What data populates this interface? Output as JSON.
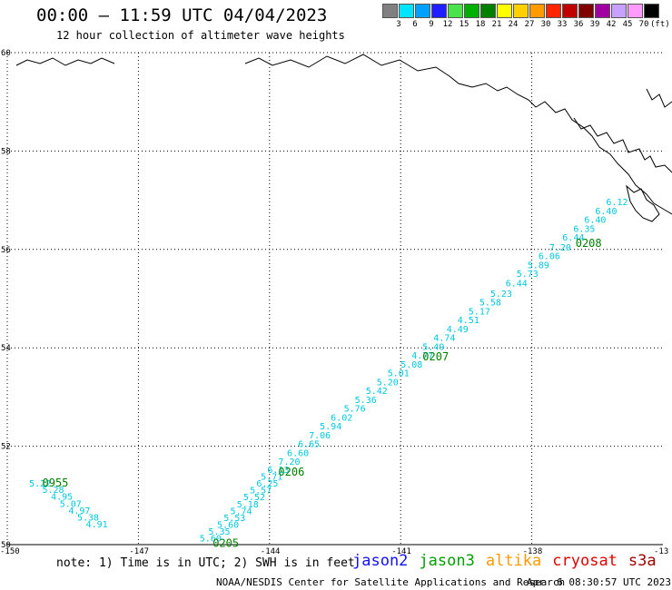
{
  "header": {
    "title": "00:00 – 11:59 UTC 04/04/2023",
    "subtitle": "12 hour collection of altimeter wave heights"
  },
  "colorbar": {
    "unit": "(ft)",
    "swatches": [
      {
        "label": "3",
        "color": "#808080"
      },
      {
        "label": "6",
        "color": "#00e5ff"
      },
      {
        "label": "9",
        "color": "#00a0ff"
      },
      {
        "label": "12",
        "color": "#1f1fff"
      },
      {
        "label": "15",
        "color": "#4be34b"
      },
      {
        "label": "18",
        "color": "#00b000"
      },
      {
        "label": "21",
        "color": "#008000"
      },
      {
        "label": "24",
        "color": "#ffff00"
      },
      {
        "label": "27",
        "color": "#ffd000"
      },
      {
        "label": "30",
        "color": "#ff9a00"
      },
      {
        "label": "33",
        "color": "#ff2400"
      },
      {
        "label": "36",
        "color": "#c00000"
      },
      {
        "label": "39",
        "color": "#800000"
      },
      {
        "label": "42",
        "color": "#a000a0"
      },
      {
        "label": "45",
        "color": "#c8a0ff"
      },
      {
        "label": "70",
        "color": "#ff9aff"
      },
      {
        "label": "",
        "color": "#000000"
      }
    ]
  },
  "axes": {
    "lon_labels": [
      "-150",
      "-147",
      "-144",
      "-141",
      "-138",
      "-13"
    ],
    "lat_labels": [
      "50",
      "52",
      "54",
      "56",
      "58",
      "60"
    ]
  },
  "track_color": "#00c8e0",
  "time_color": "#008000",
  "observations": [
    {
      "lon": -149.5,
      "lat": 51.18,
      "swh": "5.22"
    },
    {
      "lon": -149.2,
      "lat": 51.05,
      "swh": "5.28"
    },
    {
      "lon": -149.0,
      "lat": 50.91,
      "swh": "4.95"
    },
    {
      "lon": -148.8,
      "lat": 50.77,
      "swh": "5.07"
    },
    {
      "lon": -148.6,
      "lat": 50.63,
      "swh": "4.97"
    },
    {
      "lon": -148.4,
      "lat": 50.49,
      "swh": "5.38"
    },
    {
      "lon": -148.2,
      "lat": 50.35,
      "swh": "4.91"
    },
    {
      "lon": -145.6,
      "lat": 50.06,
      "swh": "5.60"
    },
    {
      "lon": -145.4,
      "lat": 50.2,
      "swh": "5.35"
    },
    {
      "lon": -145.2,
      "lat": 50.34,
      "swh": "5.60"
    },
    {
      "lon": -145.05,
      "lat": 50.48,
      "swh": "5.53"
    },
    {
      "lon": -144.9,
      "lat": 50.62,
      "swh": "5.74"
    },
    {
      "lon": -144.75,
      "lat": 50.76,
      "swh": "5.18"
    },
    {
      "lon": -144.6,
      "lat": 50.9,
      "swh": "5.52"
    },
    {
      "lon": -144.45,
      "lat": 51.04,
      "swh": "5.57"
    },
    {
      "lon": -144.3,
      "lat": 51.18,
      "swh": "6.25"
    },
    {
      "lon": -144.2,
      "lat": 51.32,
      "swh": "5.71"
    },
    {
      "lon": -144.05,
      "lat": 51.46,
      "swh": "6.13"
    },
    {
      "lon": -143.8,
      "lat": 51.62,
      "swh": "7.20"
    },
    {
      "lon": -143.6,
      "lat": 51.8,
      "swh": "6.60"
    },
    {
      "lon": -143.35,
      "lat": 51.98,
      "swh": "6.65"
    },
    {
      "lon": -143.1,
      "lat": 52.16,
      "swh": "7.06"
    },
    {
      "lon": -142.85,
      "lat": 52.34,
      "swh": "5.94"
    },
    {
      "lon": -142.6,
      "lat": 52.52,
      "swh": "6.02"
    },
    {
      "lon": -142.3,
      "lat": 52.7,
      "swh": "5.76"
    },
    {
      "lon": -142.05,
      "lat": 52.88,
      "swh": "5.36"
    },
    {
      "lon": -141.8,
      "lat": 53.06,
      "swh": "5.42"
    },
    {
      "lon": -141.55,
      "lat": 53.24,
      "swh": "5.20"
    },
    {
      "lon": -141.3,
      "lat": 53.42,
      "swh": "5.01"
    },
    {
      "lon": -141.0,
      "lat": 53.6,
      "swh": "5.08"
    },
    {
      "lon": -140.75,
      "lat": 53.78,
      "swh": "4.77"
    },
    {
      "lon": -140.5,
      "lat": 53.96,
      "swh": "5.49"
    },
    {
      "lon": -140.25,
      "lat": 54.14,
      "swh": "4.74"
    },
    {
      "lon": -139.95,
      "lat": 54.32,
      "swh": "4.49"
    },
    {
      "lon": -139.7,
      "lat": 54.5,
      "swh": "4.51"
    },
    {
      "lon": -139.45,
      "lat": 54.68,
      "swh": "5.17"
    },
    {
      "lon": -139.2,
      "lat": 54.86,
      "swh": "5.58"
    },
    {
      "lon": -138.95,
      "lat": 55.04,
      "swh": "5.23"
    },
    {
      "lon": -138.6,
      "lat": 55.25,
      "swh": "6.44"
    },
    {
      "lon": -138.35,
      "lat": 55.44,
      "swh": "5.73"
    },
    {
      "lon": -138.1,
      "lat": 55.62,
      "swh": "5.89"
    },
    {
      "lon": -137.85,
      "lat": 55.8,
      "swh": "6.06"
    },
    {
      "lon": -137.6,
      "lat": 55.98,
      "swh": "7.20"
    },
    {
      "lon": -137.3,
      "lat": 56.18,
      "swh": "6.44"
    },
    {
      "lon": -137.05,
      "lat": 56.36,
      "swh": "6.35"
    },
    {
      "lon": -136.8,
      "lat": 56.54,
      "swh": "6.40"
    },
    {
      "lon": -136.55,
      "lat": 56.72,
      "swh": "6.40"
    },
    {
      "lon": -136.3,
      "lat": 56.9,
      "swh": "6.12"
    }
  ],
  "time_labels": [
    {
      "lon": -149.2,
      "lat": 51.18,
      "text": "0955"
    },
    {
      "lon": -145.3,
      "lat": 49.95,
      "text": "0205"
    },
    {
      "lon": -143.8,
      "lat": 51.4,
      "text": "0206"
    },
    {
      "lon": -140.5,
      "lat": 53.75,
      "text": "0207"
    },
    {
      "lon": -137.0,
      "lat": 56.05,
      "text": "0208"
    }
  ],
  "footer": {
    "note": "note: 1) Time is in UTC; 2) SWH is in feet",
    "satellites": [
      {
        "name": "jason2",
        "color": "#1010ff"
      },
      {
        "name": "jason3",
        "color": "#00a000"
      },
      {
        "name": "altika",
        "color": "#ff9a00"
      },
      {
        "name": "cryosat",
        "color": "#e00000"
      },
      {
        "name": "s3a",
        "color": "#a00000"
      }
    ],
    "credit": "NOAA/NESDIS Center for Satellite Applications and Research",
    "date": "Apr  6 08:30:57 UTC 2023"
  }
}
